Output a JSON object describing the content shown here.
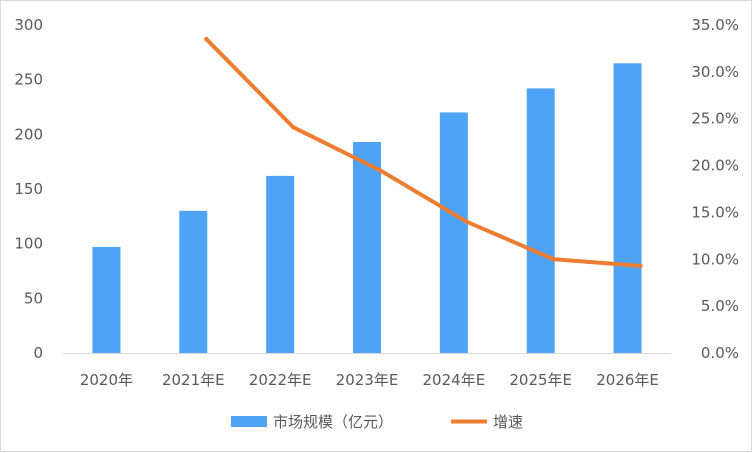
{
  "chart_data": {
    "type": "bar",
    "categories": [
      "2020年",
      "2021年E",
      "2022年E",
      "2023年E",
      "2024年E",
      "2025年E",
      "2026年E"
    ],
    "series": [
      {
        "name": "市场规模（亿元）",
        "type": "bar",
        "axis": "left",
        "color": "#4ea3f7",
        "values": [
          97,
          130,
          162,
          193,
          220,
          242,
          265
        ]
      },
      {
        "name": "增速",
        "type": "line",
        "axis": "right",
        "color": "#ed7d31",
        "values": [
          null,
          33.5,
          24.1,
          19.5,
          14.0,
          10.0,
          9.3
        ]
      }
    ],
    "yaxis_left": {
      "ylim": [
        0,
        300
      ],
      "ticks": [
        "0",
        "50",
        "100",
        "150",
        "200",
        "250",
        "300"
      ]
    },
    "yaxis_right": {
      "ylim": [
        0,
        35
      ],
      "ticks": [
        "0.0%",
        "5.0%",
        "10.0%",
        "15.0%",
        "20.0%",
        "25.0%",
        "30.0%",
        "35.0%"
      ]
    },
    "legend_position": "bottom",
    "grid": false
  }
}
